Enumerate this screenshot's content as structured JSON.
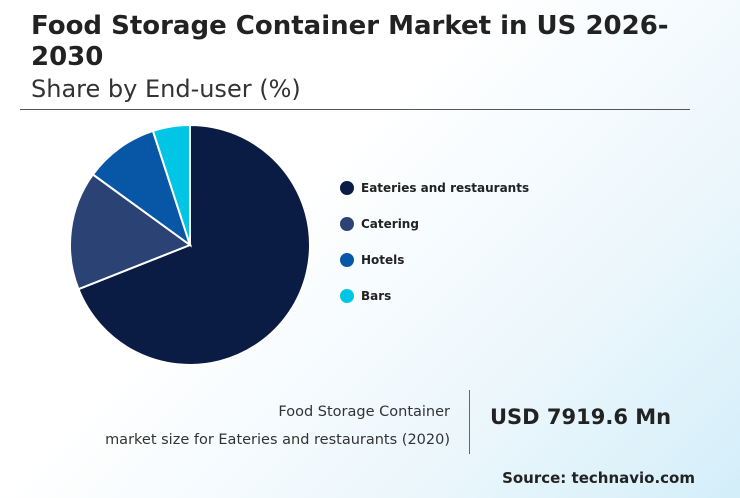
{
  "header": {
    "title": "Food Storage Container Market in US 2026-2030",
    "subtitle": "Share by End-user (%)"
  },
  "chart_data": {
    "type": "pie",
    "categories": [
      "Eateries and restaurants",
      "Catering",
      "Hotels",
      "Bars"
    ],
    "values": [
      69,
      16,
      10,
      5
    ],
    "colors": [
      "#0a1c44",
      "#2b4275",
      "#0757a6",
      "#00c5e5"
    ],
    "start_angle_deg": 0,
    "direction": "clockwise",
    "legend_position": "right"
  },
  "callout": {
    "line1": "Food Storage Container",
    "line2": "market size for Eateries and restaurants (2020)",
    "value": "USD 7919.6 Mn"
  },
  "source": "Source: technavio.com"
}
